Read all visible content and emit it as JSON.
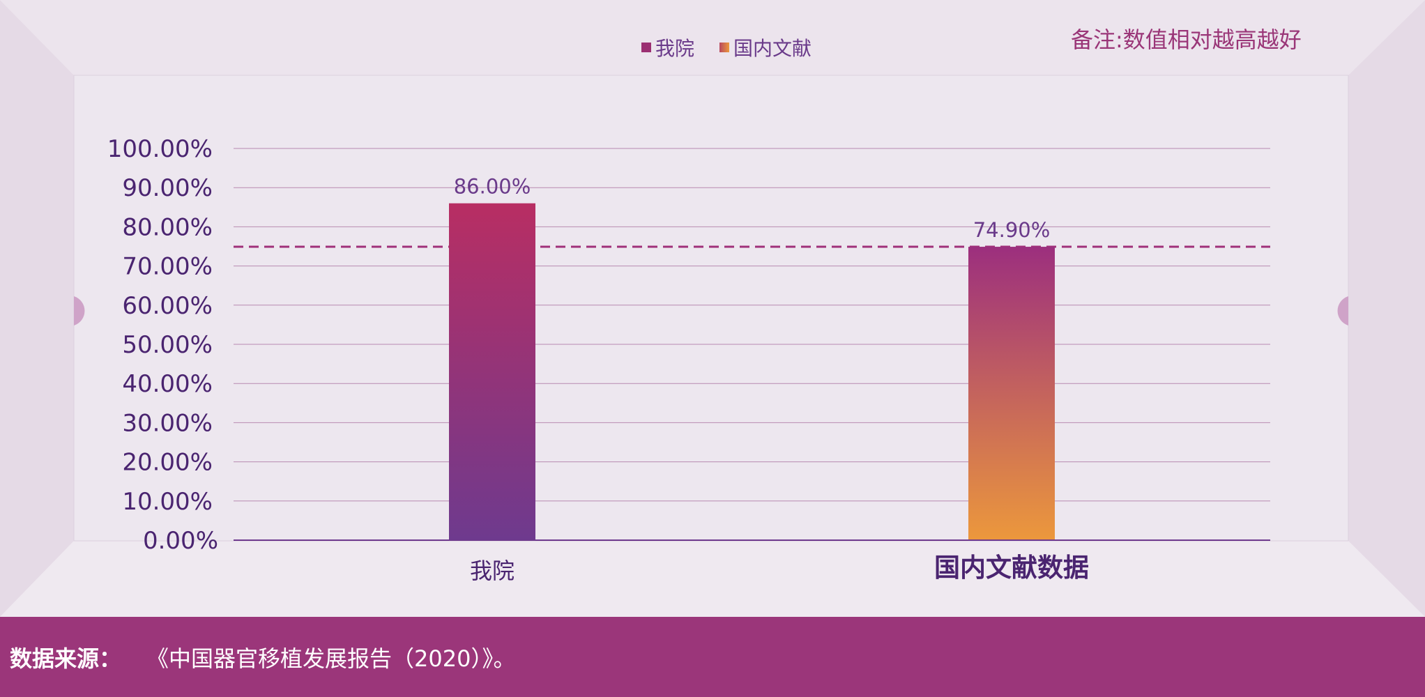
{
  "note": "备注:数值相对越高越好",
  "footer": {
    "label": "数据来源：",
    "text": "《中国器官移植发展报告（2020）》。"
  },
  "colors": {
    "bar1_top": "#b82e63",
    "bar1_bottom": "#6e3a8e",
    "bar2_top": "#9c2f7e",
    "bar2_bottom": "#ec983c",
    "reference_line": "#a0307a",
    "axis_text": "#4a2470",
    "footer_bg": "#9b367a"
  },
  "chart_data": {
    "type": "bar",
    "categories": [
      "我院",
      "国内文献数据"
    ],
    "values": [
      86.0,
      74.9
    ],
    "data_labels": [
      "86.00%",
      "74.90%"
    ],
    "legend": [
      "我院",
      "国内文献"
    ],
    "legend_position": "top-center",
    "reference_line": {
      "value": 74.9,
      "style": "dashed"
    },
    "ylim": [
      0,
      100
    ],
    "yticks": [
      "0.00%",
      "10.00%",
      "20.00%",
      "30.00%",
      "40.00%",
      "50.00%",
      "60.00%",
      "70.00%",
      "80.00%",
      "90.00%",
      "100.00%"
    ],
    "grid": true
  }
}
